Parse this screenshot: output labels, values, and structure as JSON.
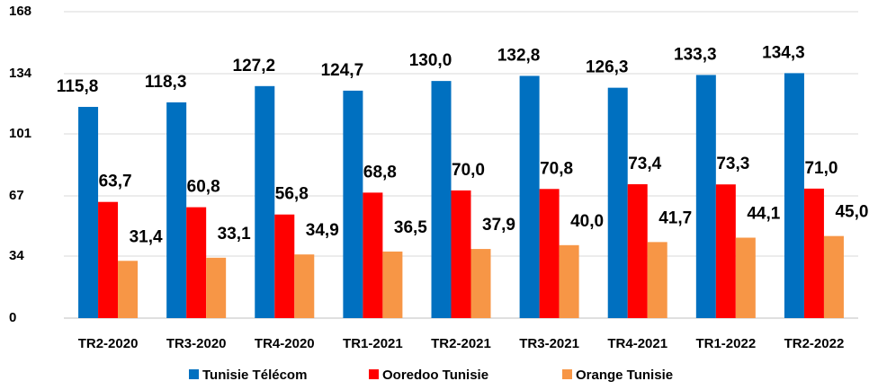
{
  "chart_data": {
    "type": "bar",
    "categories": [
      "TR2-2020",
      "TR3-2020",
      "TR4-2020",
      "TR1-2021",
      "TR2-2021",
      "TR3-2021",
      "TR4-2021",
      "TR1-2022",
      "TR2-2022"
    ],
    "series": [
      {
        "name": "Tunisie Télécom",
        "color": "#0070c0",
        "values": [
          115.8,
          118.3,
          127.2,
          124.7,
          130.0,
          132.8,
          126.3,
          133.3,
          134.3
        ],
        "value_labels": [
          "115,8",
          "118,3",
          "127,2",
          "124,7",
          "130,0",
          "132,8",
          "126,3",
          "133,3",
          "134,3"
        ]
      },
      {
        "name": "Ooredoo Tunisie",
        "color": "#ff0000",
        "values": [
          63.7,
          60.8,
          56.8,
          68.8,
          70.0,
          70.8,
          73.4,
          73.3,
          71.0
        ],
        "value_labels": [
          "63,7",
          "60,8",
          "56,8",
          "68,8",
          "70,0",
          "70,8",
          "73,4",
          "73,3",
          "71,0"
        ]
      },
      {
        "name": "Orange Tunisie",
        "color": "#f79646",
        "values": [
          31.4,
          33.1,
          34.9,
          36.5,
          37.9,
          40.0,
          41.7,
          44.1,
          45.0
        ],
        "value_labels": [
          "31,4",
          "33,1",
          "34,9",
          "36,5",
          "37,9",
          "40,0",
          "41,7",
          "44,1",
          "45,0"
        ]
      }
    ],
    "ylim": [
      0,
      168
    ],
    "yticks": [
      0,
      34,
      67,
      101,
      134,
      168
    ],
    "grid": true,
    "legend": "bottom"
  }
}
